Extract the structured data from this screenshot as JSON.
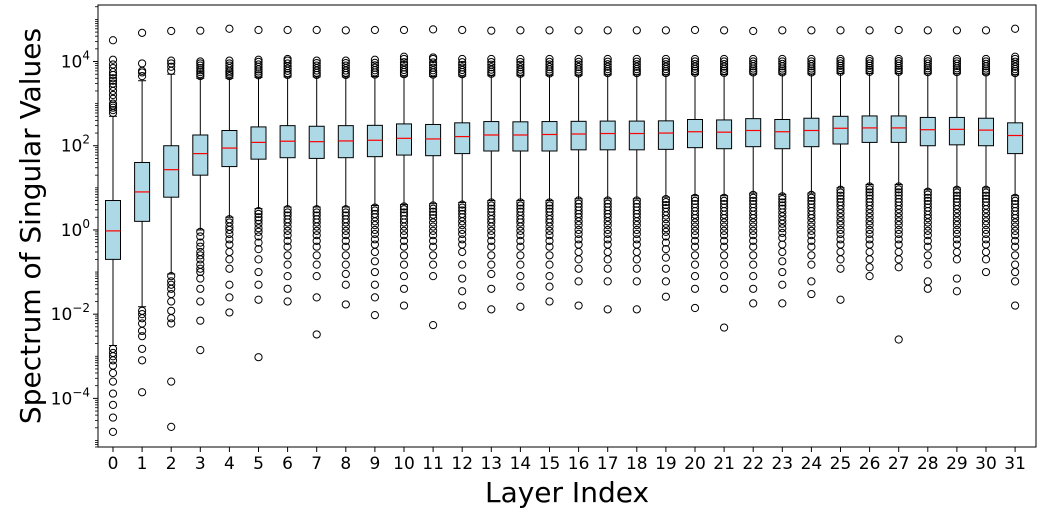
{
  "chart_data": {
    "type": "box",
    "xlabel": "Layer Index",
    "ylabel": "Spectrum of Singular Values",
    "yscale": "log",
    "ylim": [
      7e-06,
      220000
    ],
    "grid": false,
    "y_ticks": [
      {
        "value": 0.0001,
        "base": "10",
        "exp": "−4"
      },
      {
        "value": 0.01,
        "base": "10",
        "exp": "−2"
      },
      {
        "value": 1,
        "base": "10",
        "exp": "0"
      },
      {
        "value": 100,
        "base": "10",
        "exp": "2"
      },
      {
        "value": 10000,
        "base": "10",
        "exp": "4"
      }
    ],
    "categories": [
      "0",
      "1",
      "2",
      "3",
      "4",
      "5",
      "6",
      "7",
      "8",
      "9",
      "10",
      "11",
      "12",
      "13",
      "14",
      "15",
      "16",
      "17",
      "18",
      "19",
      "20",
      "21",
      "22",
      "23",
      "24",
      "25",
      "26",
      "27",
      "28",
      "29",
      "30",
      "31"
    ],
    "colors": {
      "box_fill": "#add8e6",
      "median": "#ff0000",
      "outline": "#000000"
    },
    "boxes": [
      {
        "whislo": 0.0018,
        "q1": 0.2,
        "med": 0.95,
        "q3": 5.0,
        "whishi": 500,
        "fliers_high": [
          600,
          700,
          800,
          900,
          1000,
          1300,
          1600,
          2000,
          2500,
          3000,
          3500,
          4000,
          4800,
          5600,
          7000,
          8500,
          11000,
          32000
        ],
        "fliers_low": [
          0.0015,
          0.0012,
          0.001,
          0.0008,
          0.0006,
          0.0004,
          0.00025,
          0.00013,
          7e-05,
          3.5e-05,
          1.6e-05
        ]
      },
      {
        "whislo": 0.015,
        "q1": 1.6,
        "med": 8.0,
        "q3": 40,
        "whishi": 3500,
        "fliers_high": [
          4500,
          5500,
          6000,
          9000,
          48000
        ],
        "fliers_low": [
          0.012,
          0.01,
          0.008,
          0.006,
          0.004,
          0.003,
          0.0015,
          0.0008,
          0.00014
        ]
      },
      {
        "whislo": 0.09,
        "q1": 6.0,
        "med": 27,
        "q3": 100,
        "whishi": 5000,
        "fliers_high": [
          6000,
          7500,
          9000,
          10500,
          53000
        ],
        "fliers_low": [
          0.08,
          0.06,
          0.05,
          0.04,
          0.03,
          0.02,
          0.012,
          0.008,
          0.006,
          0.00025,
          2.1e-05
        ]
      },
      {
        "whislo": 1.0,
        "q1": 20,
        "med": 65,
        "q3": 180,
        "whishi": 4000,
        "fliers_high": [
          4500,
          5000,
          5600,
          6200,
          7000,
          8000,
          9000,
          10000,
          54000
        ],
        "fliers_low": [
          0.9,
          0.7,
          0.5,
          0.4,
          0.3,
          0.25,
          0.2,
          0.15,
          0.12,
          0.1,
          0.07,
          0.04,
          0.02,
          0.007,
          0.0014
        ]
      },
      {
        "whislo": 2.0,
        "q1": 32,
        "med": 88,
        "q3": 230,
        "whishi": 4000,
        "fliers_high": [
          4500,
          5000,
          5500,
          6000,
          7000,
          8000,
          9000,
          10500,
          60000
        ],
        "fliers_low": [
          1.8,
          1.5,
          1.2,
          1.0,
          0.8,
          0.6,
          0.45,
          0.3,
          0.2,
          0.12,
          0.05,
          0.025,
          0.011
        ]
      },
      {
        "whislo": 3.2,
        "q1": 48,
        "med": 120,
        "q3": 280,
        "whishi": 4200,
        "fliers_high": [
          4700,
          5200,
          5800,
          6500,
          7500,
          8500,
          9800,
          11000,
          56000
        ],
        "fliers_low": [
          2.8,
          2.4,
          2.0,
          1.7,
          1.4,
          1.1,
          0.9,
          0.7,
          0.5,
          0.35,
          0.2,
          0.1,
          0.05,
          0.022,
          0.00095
        ]
      },
      {
        "whislo": 3.5,
        "q1": 52,
        "med": 128,
        "q3": 300,
        "whishi": 4300,
        "fliers_high": [
          4800,
          5300,
          6000,
          6800,
          7800,
          9000,
          10500,
          11500,
          56000
        ],
        "fliers_low": [
          3.1,
          2.6,
          2.2,
          1.8,
          1.5,
          1.2,
          0.95,
          0.75,
          0.55,
          0.4,
          0.25,
          0.15,
          0.08,
          0.04,
          0.02
        ]
      },
      {
        "whislo": 3.5,
        "q1": 50,
        "med": 125,
        "q3": 290,
        "whishi": 4300,
        "fliers_high": [
          4800,
          5400,
          6100,
          7000,
          8000,
          9200,
          10500,
          56000
        ],
        "fliers_low": [
          3.1,
          2.6,
          2.2,
          1.8,
          1.5,
          1.2,
          0.95,
          0.75,
          0.55,
          0.4,
          0.25,
          0.15,
          0.08,
          0.025,
          0.0033
        ]
      },
      {
        "whislo": 3.5,
        "q1": 52,
        "med": 130,
        "q3": 300,
        "whishi": 4300,
        "fliers_high": [
          4800,
          5400,
          6100,
          7000,
          8000,
          9200,
          10500,
          55000
        ],
        "fliers_low": [
          3.1,
          2.6,
          2.2,
          1.8,
          1.5,
          1.2,
          0.95,
          0.75,
          0.55,
          0.4,
          0.25,
          0.15,
          0.09,
          0.05,
          0.017
        ]
      },
      {
        "whislo": 3.8,
        "q1": 55,
        "med": 135,
        "q3": 305,
        "whishi": 4400,
        "fliers_high": [
          4900,
          5500,
          6200,
          7100,
          8100,
          9300,
          11000,
          56000
        ],
        "fliers_low": [
          3.4,
          2.9,
          2.4,
          2.0,
          1.6,
          1.3,
          1.0,
          0.8,
          0.6,
          0.45,
          0.3,
          0.18,
          0.1,
          0.05,
          0.025,
          0.0095
        ]
      },
      {
        "whislo": 4.0,
        "q1": 60,
        "med": 150,
        "q3": 330,
        "whishi": 4500,
        "fliers_high": [
          5000,
          5600,
          6300,
          7200,
          8300,
          9600,
          11500,
          13000,
          56000
        ],
        "fliers_low": [
          3.6,
          3.1,
          2.6,
          2.2,
          1.8,
          1.5,
          1.2,
          0.95,
          0.75,
          0.55,
          0.4,
          0.25,
          0.15,
          0.08,
          0.04,
          0.016
        ]
      },
      {
        "whislo": 4.2,
        "q1": 58,
        "med": 145,
        "q3": 320,
        "whishi": 4400,
        "fliers_high": [
          4900,
          5500,
          6200,
          7100,
          8200,
          9500,
          11500,
          12500,
          58000
        ],
        "fliers_low": [
          3.8,
          3.2,
          2.7,
          2.3,
          1.9,
          1.5,
          1.2,
          0.95,
          0.75,
          0.55,
          0.4,
          0.25,
          0.15,
          0.08,
          0.0055
        ]
      },
      {
        "whislo": 4.5,
        "q1": 65,
        "med": 165,
        "q3": 350,
        "whishi": 4500,
        "fliers_high": [
          5000,
          5600,
          6300,
          7200,
          8300,
          9600,
          11500,
          56000
        ],
        "fliers_low": [
          4.0,
          3.4,
          2.9,
          2.4,
          2.0,
          1.6,
          1.3,
          1.0,
          0.8,
          0.6,
          0.45,
          0.3,
          0.15,
          0.07,
          0.035,
          0.016
        ]
      },
      {
        "whislo": 5.0,
        "q1": 75,
        "med": 180,
        "q3": 375,
        "whishi": 4600,
        "fliers_high": [
          5100,
          5700,
          6400,
          7300,
          8400,
          9700,
          11500,
          54000
        ],
        "fliers_low": [
          4.5,
          3.8,
          3.2,
          2.7,
          2.2,
          1.8,
          1.5,
          1.2,
          0.95,
          0.75,
          0.55,
          0.4,
          0.25,
          0.15,
          0.09,
          0.04,
          0.013
        ]
      },
      {
        "whislo": 5.0,
        "q1": 75,
        "med": 180,
        "q3": 370,
        "whishi": 4600,
        "fliers_high": [
          5100,
          5700,
          6400,
          7300,
          8400,
          9700,
          11500,
          55000
        ],
        "fliers_low": [
          4.5,
          3.8,
          3.2,
          2.7,
          2.2,
          1.8,
          1.5,
          1.2,
          0.95,
          0.75,
          0.55,
          0.4,
          0.25,
          0.15,
          0.08,
          0.045,
          0.015
        ]
      },
      {
        "whislo": 5.0,
        "q1": 75,
        "med": 185,
        "q3": 375,
        "whishi": 4700,
        "fliers_high": [
          5200,
          5800,
          6500,
          7400,
          8500,
          9800,
          11500,
          55000
        ],
        "fliers_low": [
          4.5,
          3.8,
          3.2,
          2.7,
          2.2,
          1.8,
          1.5,
          1.2,
          0.95,
          0.75,
          0.55,
          0.4,
          0.25,
          0.15,
          0.08,
          0.045,
          0.02
        ]
      },
      {
        "whislo": 5.5,
        "q1": 80,
        "med": 190,
        "q3": 380,
        "whishi": 4700,
        "fliers_high": [
          5200,
          5800,
          6500,
          7400,
          8500,
          9800,
          11500,
          55000
        ],
        "fliers_low": [
          5.0,
          4.2,
          3.5,
          2.9,
          2.4,
          2.0,
          1.6,
          1.3,
          1.0,
          0.8,
          0.6,
          0.45,
          0.3,
          0.2,
          0.12,
          0.06,
          0.016
        ]
      },
      {
        "whislo": 5.5,
        "q1": 80,
        "med": 195,
        "q3": 385,
        "whishi": 4800,
        "fliers_high": [
          5300,
          5900,
          6600,
          7500,
          8600,
          9900,
          11500,
          55000
        ],
        "fliers_low": [
          5.0,
          4.2,
          3.5,
          2.9,
          2.4,
          2.0,
          1.6,
          1.3,
          1.0,
          0.8,
          0.6,
          0.45,
          0.3,
          0.2,
          0.12,
          0.06,
          0.013
        ]
      },
      {
        "whislo": 5.5,
        "q1": 80,
        "med": 195,
        "q3": 385,
        "whishi": 4800,
        "fliers_high": [
          5300,
          5900,
          6600,
          7500,
          8600,
          9900,
          11500,
          55000
        ],
        "fliers_low": [
          5.0,
          4.2,
          3.5,
          2.9,
          2.4,
          2.0,
          1.6,
          1.3,
          1.0,
          0.8,
          0.6,
          0.45,
          0.3,
          0.2,
          0.12,
          0.06,
          0.013
        ]
      },
      {
        "whislo": 6.0,
        "q1": 82,
        "med": 200,
        "q3": 390,
        "whishi": 4800,
        "fliers_high": [
          5300,
          5900,
          6600,
          7500,
          8600,
          9900,
          11500,
          55000
        ],
        "fliers_low": [
          5.4,
          4.6,
          3.9,
          3.3,
          2.7,
          2.2,
          1.8,
          1.4,
          1.1,
          0.9,
          0.7,
          0.5,
          0.35,
          0.22,
          0.12,
          0.06,
          0.026
        ]
      },
      {
        "whislo": 6.5,
        "q1": 90,
        "med": 215,
        "q3": 420,
        "whishi": 4900,
        "fliers_high": [
          5400,
          6000,
          6700,
          7600,
          8700,
          10000,
          11500,
          56000
        ],
        "fliers_low": [
          5.8,
          4.9,
          4.1,
          3.4,
          2.8,
          2.3,
          1.9,
          1.5,
          1.2,
          0.95,
          0.75,
          0.55,
          0.4,
          0.25,
          0.15,
          0.08,
          0.04,
          0.014
        ]
      },
      {
        "whislo": 6.5,
        "q1": 85,
        "med": 210,
        "q3": 410,
        "whishi": 4900,
        "fliers_high": [
          5400,
          6000,
          6700,
          7600,
          8700,
          10000,
          11500,
          55000
        ],
        "fliers_low": [
          5.8,
          4.9,
          4.1,
          3.4,
          2.8,
          2.3,
          1.9,
          1.5,
          1.2,
          0.95,
          0.75,
          0.55,
          0.4,
          0.25,
          0.15,
          0.08,
          0.04,
          0.0048
        ]
      },
      {
        "whislo": 7.5,
        "q1": 95,
        "med": 230,
        "q3": 440,
        "whishi": 5000,
        "fliers_high": [
          5500,
          6100,
          6800,
          7700,
          8800,
          10000,
          11500,
          53000
        ],
        "fliers_low": [
          6.8,
          5.8,
          4.9,
          4.1,
          3.4,
          2.8,
          2.3,
          1.9,
          1.5,
          1.2,
          0.95,
          0.75,
          0.55,
          0.4,
          0.25,
          0.15,
          0.08,
          0.04,
          0.018
        ]
      },
      {
        "whislo": 7.0,
        "q1": 85,
        "med": 215,
        "q3": 420,
        "whishi": 5000,
        "fliers_high": [
          5500,
          6100,
          6800,
          7700,
          8800,
          10000,
          11500,
          55000
        ],
        "fliers_low": [
          6.3,
          5.4,
          4.5,
          3.8,
          3.2,
          2.6,
          2.1,
          1.7,
          1.4,
          1.1,
          0.85,
          0.65,
          0.45,
          0.3,
          0.18,
          0.1,
          0.05,
          0.018
        ]
      },
      {
        "whislo": 7.5,
        "q1": 95,
        "med": 230,
        "q3": 450,
        "whishi": 5000,
        "fliers_high": [
          5500,
          6100,
          6800,
          7700,
          8800,
          10000,
          11500,
          55000
        ],
        "fliers_low": [
          6.8,
          5.8,
          4.9,
          4.1,
          3.4,
          2.8,
          2.3,
          1.9,
          1.5,
          1.2,
          0.95,
          0.75,
          0.55,
          0.4,
          0.25,
          0.15,
          0.06,
          0.03
        ]
      },
      {
        "whislo": 10.0,
        "q1": 110,
        "med": 260,
        "q3": 500,
        "whishi": 5200,
        "fliers_high": [
          5700,
          6300,
          7000,
          7900,
          9000,
          10200,
          11500,
          55000
        ],
        "fliers_low": [
          9.0,
          7.7,
          6.5,
          5.5,
          4.6,
          3.8,
          3.1,
          2.5,
          2.0,
          1.6,
          1.3,
          1.0,
          0.8,
          0.6,
          0.45,
          0.3,
          0.2,
          0.12,
          0.022
        ]
      },
      {
        "whislo": 12.0,
        "q1": 120,
        "med": 265,
        "q3": 510,
        "whishi": 5200,
        "fliers_high": [
          5700,
          6300,
          7000,
          7900,
          9000,
          10200,
          11500,
          55000
        ],
        "fliers_low": [
          10.8,
          9.2,
          7.8,
          6.6,
          5.5,
          4.6,
          3.8,
          3.1,
          2.5,
          2.0,
          1.6,
          1.3,
          1.0,
          0.8,
          0.6,
          0.45,
          0.3,
          0.2,
          0.13,
          0.08
        ]
      },
      {
        "whislo": 12.0,
        "q1": 120,
        "med": 265,
        "q3": 510,
        "whishi": 5200,
        "fliers_high": [
          5700,
          6300,
          7000,
          7900,
          9000,
          10200,
          11500,
          56000
        ],
        "fliers_low": [
          10.8,
          9.2,
          7.8,
          6.6,
          5.5,
          4.6,
          3.8,
          3.1,
          2.5,
          2.0,
          1.6,
          1.3,
          1.0,
          0.8,
          0.6,
          0.45,
          0.3,
          0.2,
          0.13,
          0.0025
        ]
      },
      {
        "whislo": 9.0,
        "q1": 100,
        "med": 240,
        "q3": 470,
        "whishi": 5100,
        "fliers_high": [
          5600,
          6200,
          6900,
          7800,
          8900,
          10100,
          11500,
          55000
        ],
        "fliers_low": [
          8.1,
          6.9,
          5.8,
          4.9,
          4.1,
          3.4,
          2.8,
          2.3,
          1.9,
          1.5,
          1.2,
          0.95,
          0.75,
          0.55,
          0.4,
          0.25,
          0.15,
          0.06,
          0.04
        ]
      },
      {
        "whislo": 10.0,
        "q1": 105,
        "med": 245,
        "q3": 470,
        "whishi": 5100,
        "fliers_high": [
          5600,
          6200,
          6900,
          7800,
          8900,
          10100,
          11500,
          55000
        ],
        "fliers_low": [
          9.0,
          7.7,
          6.5,
          5.5,
          4.6,
          3.8,
          3.1,
          2.5,
          2.0,
          1.6,
          1.3,
          1.0,
          0.8,
          0.6,
          0.45,
          0.3,
          0.2,
          0.07,
          0.035
        ]
      },
      {
        "whislo": 10.0,
        "q1": 100,
        "med": 235,
        "q3": 450,
        "whishi": 5000,
        "fliers_high": [
          5500,
          6100,
          6800,
          7700,
          8800,
          10000,
          11500,
          55000
        ],
        "fliers_low": [
          9.0,
          7.7,
          6.5,
          5.5,
          4.6,
          3.8,
          3.1,
          2.5,
          2.0,
          1.6,
          1.3,
          1.0,
          0.8,
          0.6,
          0.45,
          0.3,
          0.2,
          0.1
        ]
      },
      {
        "whislo": 6.5,
        "q1": 65,
        "med": 175,
        "q3": 350,
        "whishi": 4800,
        "fliers_high": [
          5300,
          5900,
          6600,
          7500,
          8600,
          9900,
          11500,
          13000,
          60000
        ],
        "fliers_low": [
          5.8,
          4.9,
          4.1,
          3.4,
          2.8,
          2.3,
          1.9,
          1.5,
          1.2,
          0.95,
          0.75,
          0.55,
          0.4,
          0.25,
          0.15,
          0.1,
          0.06,
          0.016
        ]
      }
    ]
  }
}
